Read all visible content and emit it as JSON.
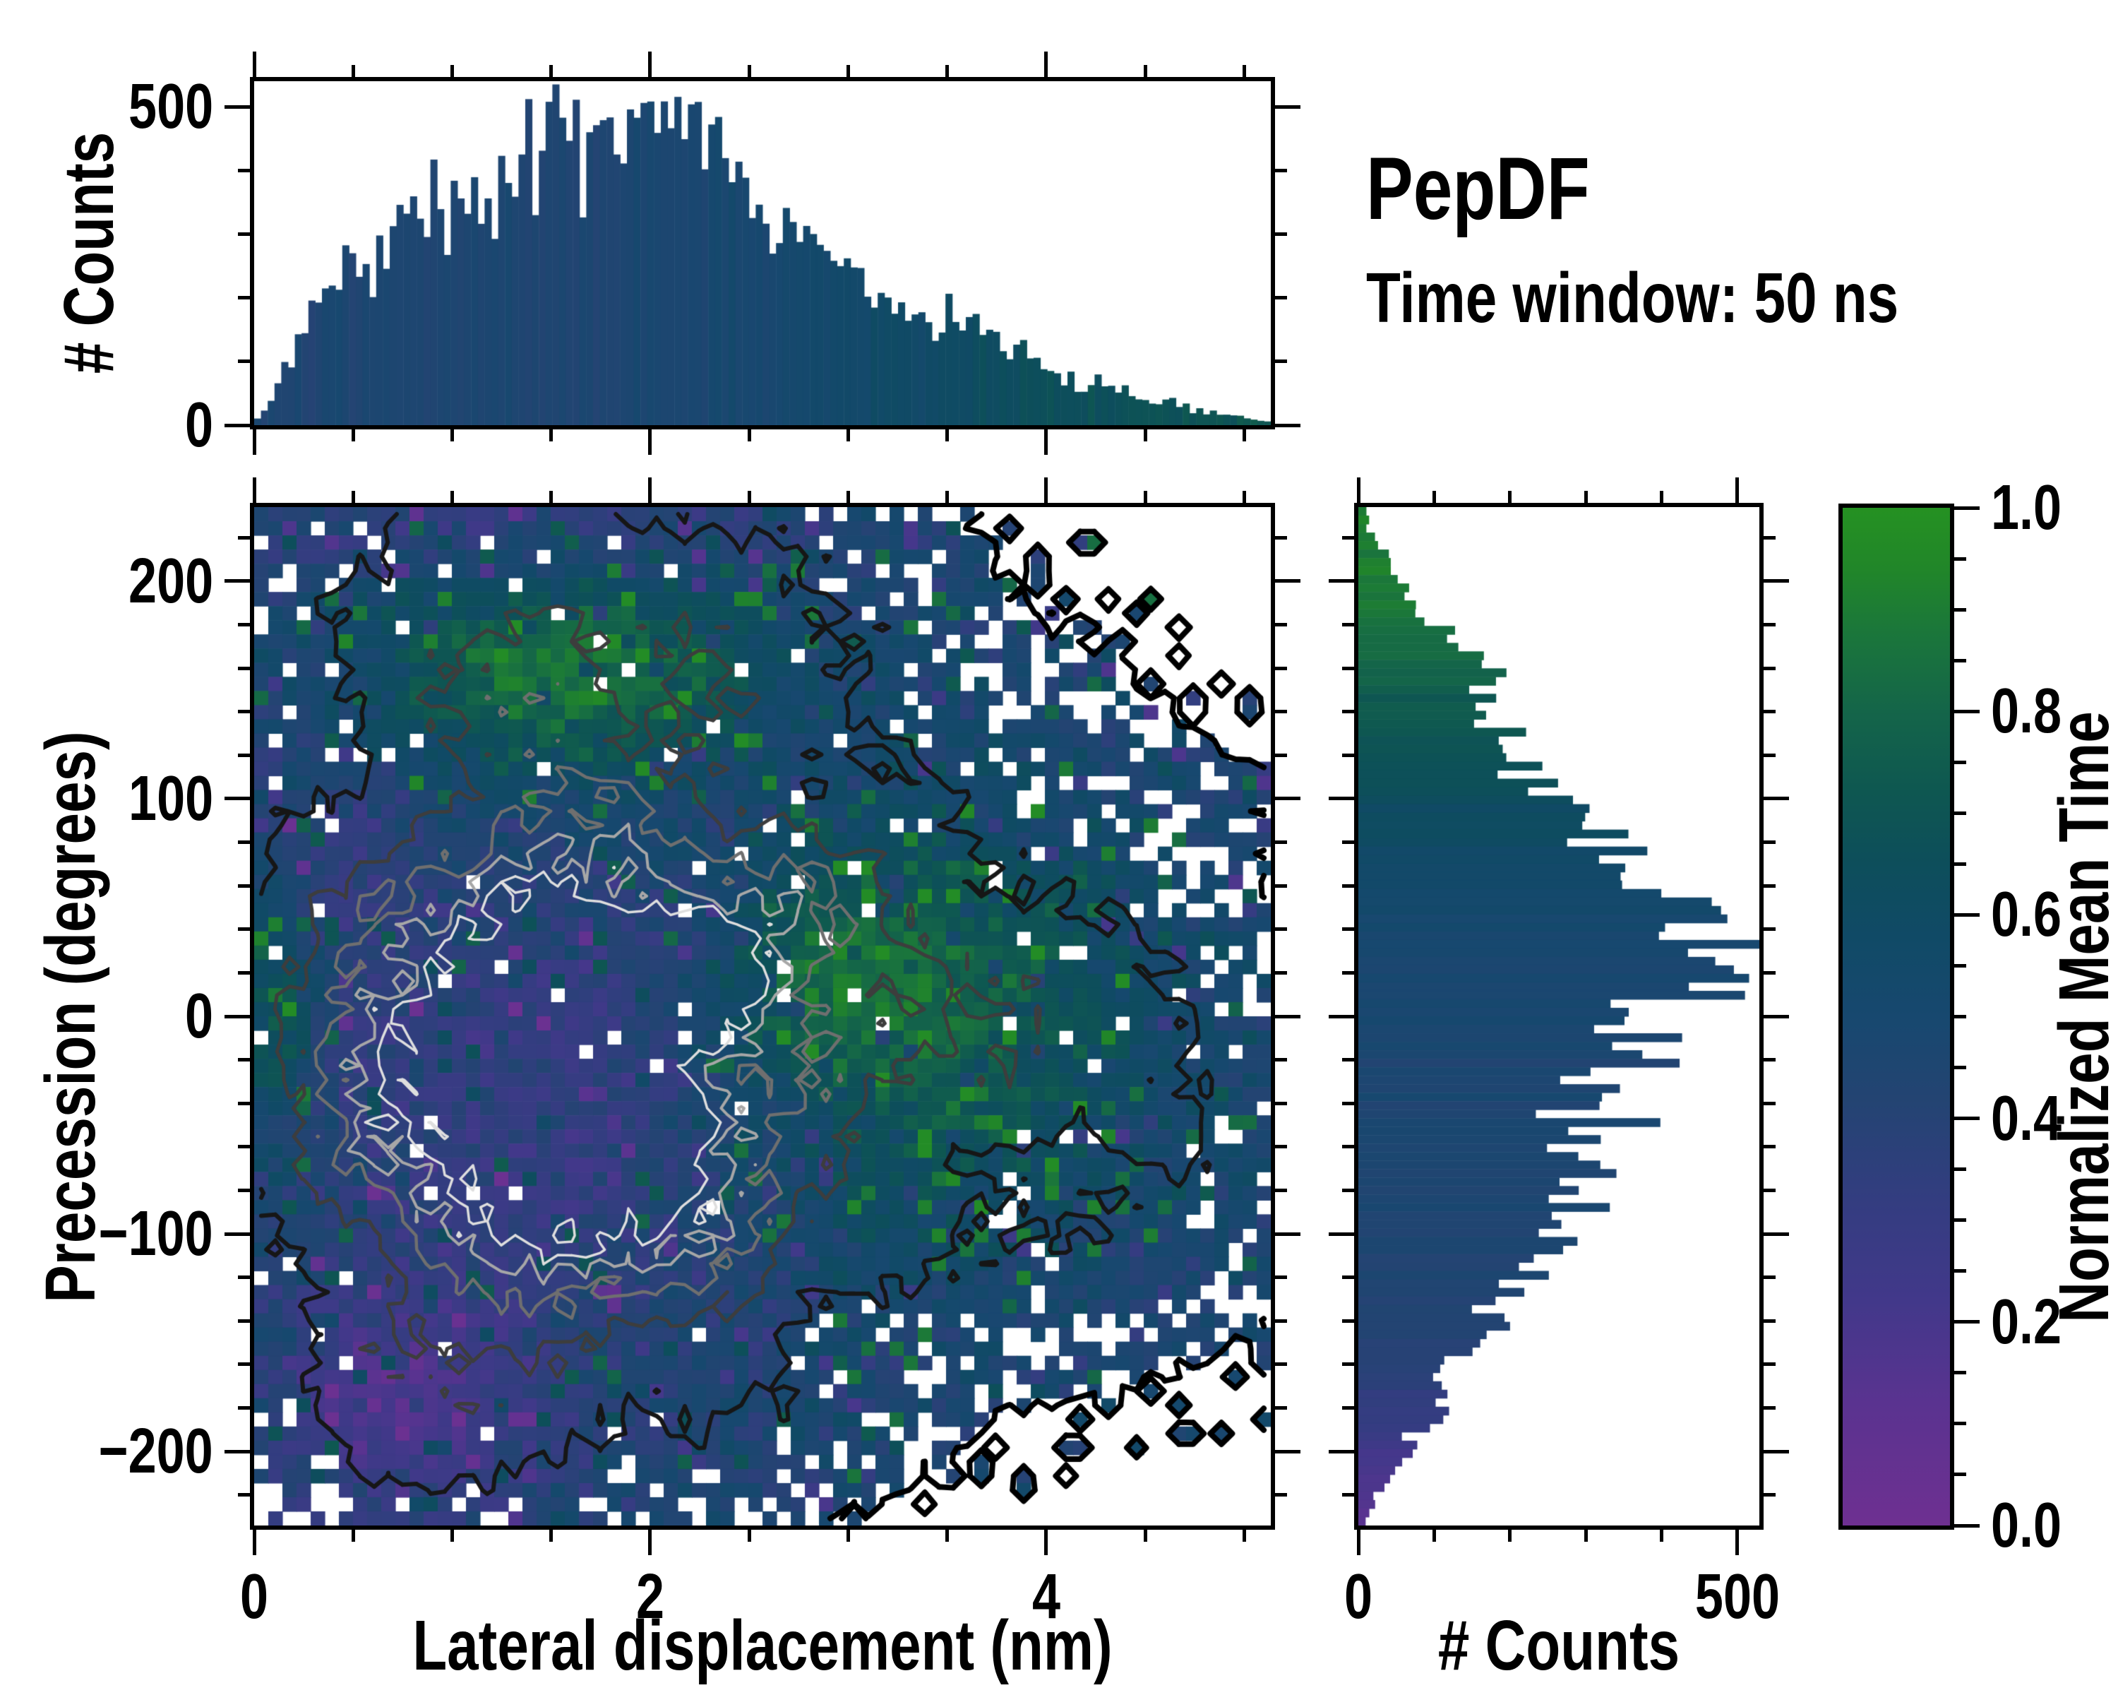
{
  "figure": {
    "title": "PepDF",
    "subtitle": "Time window: 50 ns"
  },
  "colors": {
    "background": "#ffffff",
    "spine": "#000000",
    "tick": "#000000",
    "text": "#000000"
  },
  "colormap": {
    "label": "Normalized Mean Time",
    "range": [
      0,
      1
    ],
    "stops": [
      [
        0,
        "#6e3091"
      ],
      [
        0.12,
        "#5a3390"
      ],
      [
        0.22,
        "#42388a"
      ],
      [
        0.32,
        "#333d80"
      ],
      [
        0.42,
        "#234472"
      ],
      [
        0.5,
        "#17486f"
      ],
      [
        0.58,
        "#104a66"
      ],
      [
        0.65,
        "#0d4e5b"
      ],
      [
        0.72,
        "#0e5751"
      ],
      [
        0.8,
        "#146549"
      ],
      [
        0.88,
        "#1b773a"
      ],
      [
        0.94,
        "#218629"
      ],
      [
        1,
        "#259122"
      ]
    ],
    "tick_labels": [
      "1.0",
      "0.8",
      "0.6",
      "0.4",
      "0.2",
      "0.0"
    ],
    "tick_values": [
      1.0,
      0.8,
      0.6,
      0.4,
      0.2,
      0.0
    ],
    "minor_step": 0.05
  },
  "main_plot": {
    "xlabel": "Lateral displacement (nm)",
    "ylabel": "Precession (degrees)",
    "x_range": [
      0,
      5.134
    ],
    "y_range": [
      -234,
      234
    ],
    "x_ticks": [
      {
        "v": 0,
        "label": "0"
      },
      {
        "v": 2,
        "label": "2"
      },
      {
        "v": 4,
        "label": "4"
      }
    ],
    "x_minor_step": 0.5,
    "y_ticks": [
      {
        "v": 200,
        "label": "200"
      },
      {
        "v": 100,
        "label": "100"
      },
      {
        "v": 0,
        "label": "0"
      },
      {
        "v": -100,
        "label": "−100"
      },
      {
        "v": -200,
        "label": "−200"
      }
    ],
    "y_minor_step": 20
  },
  "top_hist": {
    "ylabel": "# Counts",
    "y_range": [
      0,
      540
    ],
    "y_ticks": [
      {
        "v": 0,
        "label": "0"
      },
      {
        "v": 500,
        "label": "500"
      }
    ],
    "y_minor_step": 100,
    "bins": 150
  },
  "right_hist": {
    "xlabel": "# Counts",
    "x_range": [
      0,
      529
    ],
    "x_ticks": [
      {
        "v": 0,
        "label": "0"
      },
      {
        "v": 500,
        "label": "500"
      }
    ],
    "x_minor_step": 100,
    "bins": 120
  },
  "render": {
    "seed": 7,
    "noise_grid": 12,
    "count_noise": 0.12,
    "value_noise": 0.065,
    "green_speck_prob": 0.055,
    "purple_speck_prob": 0.035,
    "dropout_base": 0.4,
    "dropout_slope": 160,
    "isolated_speck_prob": 0.16
  },
  "chart_data": [
    {
      "type": "heatmap",
      "title": "PepDF — Time window: 50 ns",
      "xlabel": "Lateral displacement (nm)",
      "ylabel": "Precession (degrees)",
      "colorbar_label": "Normalized Mean Time",
      "x_range": [
        0,
        5.134
      ],
      "y_range": [
        -234,
        234
      ],
      "value_range": [
        0,
        1
      ],
      "grid": [
        72,
        72
      ],
      "x_ticks": [
        0,
        2,
        4
      ],
      "y_ticks": [
        200,
        100,
        0,
        -100,
        -200
      ],
      "colorbar_ticks": [
        1.0,
        0.8,
        0.6,
        0.4,
        0.2,
        0.0
      ],
      "description": "2D histogram (≈20px cells) of precession angle vs lateral displacement; cell colour = normalized mean time (purple≈0 → blue≈0.45 → teal → green≈1). Black→grey→white contour lines trace occupancy counts; isolated cells get small diamond outlines; white holes scattered inside the cloud.",
      "count_gaussians": [
        [
          480,
          1.6,
          -10,
          1.15,
          115
        ],
        [
          260,
          1.9,
          30,
          0.85,
          55
        ],
        [
          240,
          1.5,
          -65,
          0.85,
          55
        ],
        [
          120,
          1.4,
          165,
          0.95,
          55
        ],
        [
          90,
          3.5,
          5,
          1.15,
          105
        ],
        [
          55,
          2.6,
          195,
          0.75,
          55
        ],
        [
          50,
          0.8,
          -185,
          0.75,
          60
        ],
        [
          40,
          1.0,
          215,
          0.9,
          40
        ],
        [
          35,
          4.3,
          -60,
          0.8,
          70
        ],
        [
          30,
          2.2,
          -180,
          0.9,
          45
        ]
      ],
      "value_base": 0.46,
      "value_gaussians": [
        [
          -0.14,
          1.45,
          -55,
          0.95,
          85
        ],
        [
          -0.08,
          1.9,
          25,
          0.8,
          55
        ],
        [
          -0.27,
          0.75,
          -180,
          0.7,
          55
        ],
        [
          -0.1,
          0.45,
          40,
          0.5,
          110
        ],
        [
          0.42,
          1.55,
          160,
          0.95,
          48
        ],
        [
          -0.16,
          1.5,
          232,
          1.4,
          36
        ],
        [
          0.3,
          3.5,
          0,
          1.0,
          95
        ],
        [
          0.22,
          2.85,
          20,
          0.55,
          45
        ],
        [
          0.3,
          0.12,
          0,
          0.22,
          55
        ]
      ],
      "contour_levels": [
        {
          "level": 7,
          "color": "#000000",
          "width": 8
        },
        {
          "level": 60,
          "color": "#161616",
          "width": 6
        },
        {
          "level": 140,
          "color": "#3d3d3d",
          "width": 5
        },
        {
          "level": 240,
          "color": "#6f6f6f",
          "width": 4.5
        },
        {
          "level": 340,
          "color": "#a7a7a7",
          "width": 4
        },
        {
          "level": 430,
          "color": "#dedede",
          "width": 3.5
        }
      ]
    },
    {
      "type": "bar",
      "orientation": "vertical",
      "role": "top-marginal-histogram",
      "ylabel": "# Counts",
      "xlim": [
        0,
        5.134
      ],
      "ylim": [
        0,
        540
      ],
      "x": [
        0.0,
        0.08,
        0.18,
        0.3,
        0.42,
        0.55,
        0.7,
        0.85,
        1.0,
        1.15,
        1.3,
        1.45,
        1.6,
        1.75,
        1.9,
        2.05,
        2.2,
        2.35,
        2.45,
        2.55,
        2.7,
        2.85,
        3.0,
        3.2,
        3.4,
        3.6,
        3.8,
        4.0,
        4.2,
        4.4,
        4.6,
        4.8,
        5.0,
        5.13
      ],
      "counts": [
        4,
        40,
        110,
        175,
        225,
        265,
        300,
        330,
        355,
        385,
        410,
        435,
        450,
        462,
        455,
        450,
        445,
        420,
        390,
        340,
        300,
        265,
        235,
        205,
        175,
        148,
        118,
        92,
        68,
        50,
        35,
        22,
        12,
        6
      ],
      "mean_time_profile": [
        [
          0,
          0.45
        ],
        [
          1,
          0.455
        ],
        [
          1.8,
          0.462
        ],
        [
          2.3,
          0.48
        ],
        [
          2.8,
          0.52
        ],
        [
          3.2,
          0.565
        ],
        [
          3.6,
          0.6
        ],
        [
          4.0,
          0.64
        ],
        [
          4.4,
          0.67
        ],
        [
          4.8,
          0.7
        ],
        [
          5.13,
          0.72
        ]
      ]
    },
    {
      "type": "bar",
      "orientation": "horizontal",
      "role": "right-marginal-histogram",
      "xlabel": "# Counts",
      "ylim": [
        -234,
        234
      ],
      "xlim": [
        0,
        529
      ],
      "y": [
        -234,
        -222,
        -208,
        -195,
        -180,
        -165,
        -150,
        -135,
        -120,
        -105,
        -90,
        -75,
        -60,
        -45,
        -30,
        -15,
        0,
        12,
        25,
        38,
        50,
        65,
        80,
        95,
        110,
        122,
        132,
        142,
        152,
        162,
        172,
        182,
        192,
        205,
        220,
        234
      ],
      "counts": [
        6,
        22,
        50,
        80,
        108,
        132,
        158,
        185,
        212,
        240,
        262,
        285,
        302,
        315,
        332,
        360,
        400,
        445,
        486,
        450,
        415,
        375,
        335,
        295,
        250,
        210,
        185,
        175,
        185,
        170,
        140,
        105,
        75,
        45,
        20,
        8
      ],
      "mean_time_profile": [
        [
          -234,
          0.1
        ],
        [
          -218,
          0.16
        ],
        [
          -200,
          0.24
        ],
        [
          -182,
          0.32
        ],
        [
          -165,
          0.37
        ],
        [
          -148,
          0.41
        ],
        [
          -125,
          0.44
        ],
        [
          -90,
          0.455
        ],
        [
          -40,
          0.465
        ],
        [
          0,
          0.475
        ],
        [
          30,
          0.5
        ],
        [
          60,
          0.545
        ],
        [
          85,
          0.6
        ],
        [
          110,
          0.66
        ],
        [
          130,
          0.71
        ],
        [
          150,
          0.77
        ],
        [
          170,
          0.83
        ],
        [
          190,
          0.88
        ],
        [
          210,
          0.91
        ],
        [
          234,
          0.93
        ]
      ]
    }
  ]
}
